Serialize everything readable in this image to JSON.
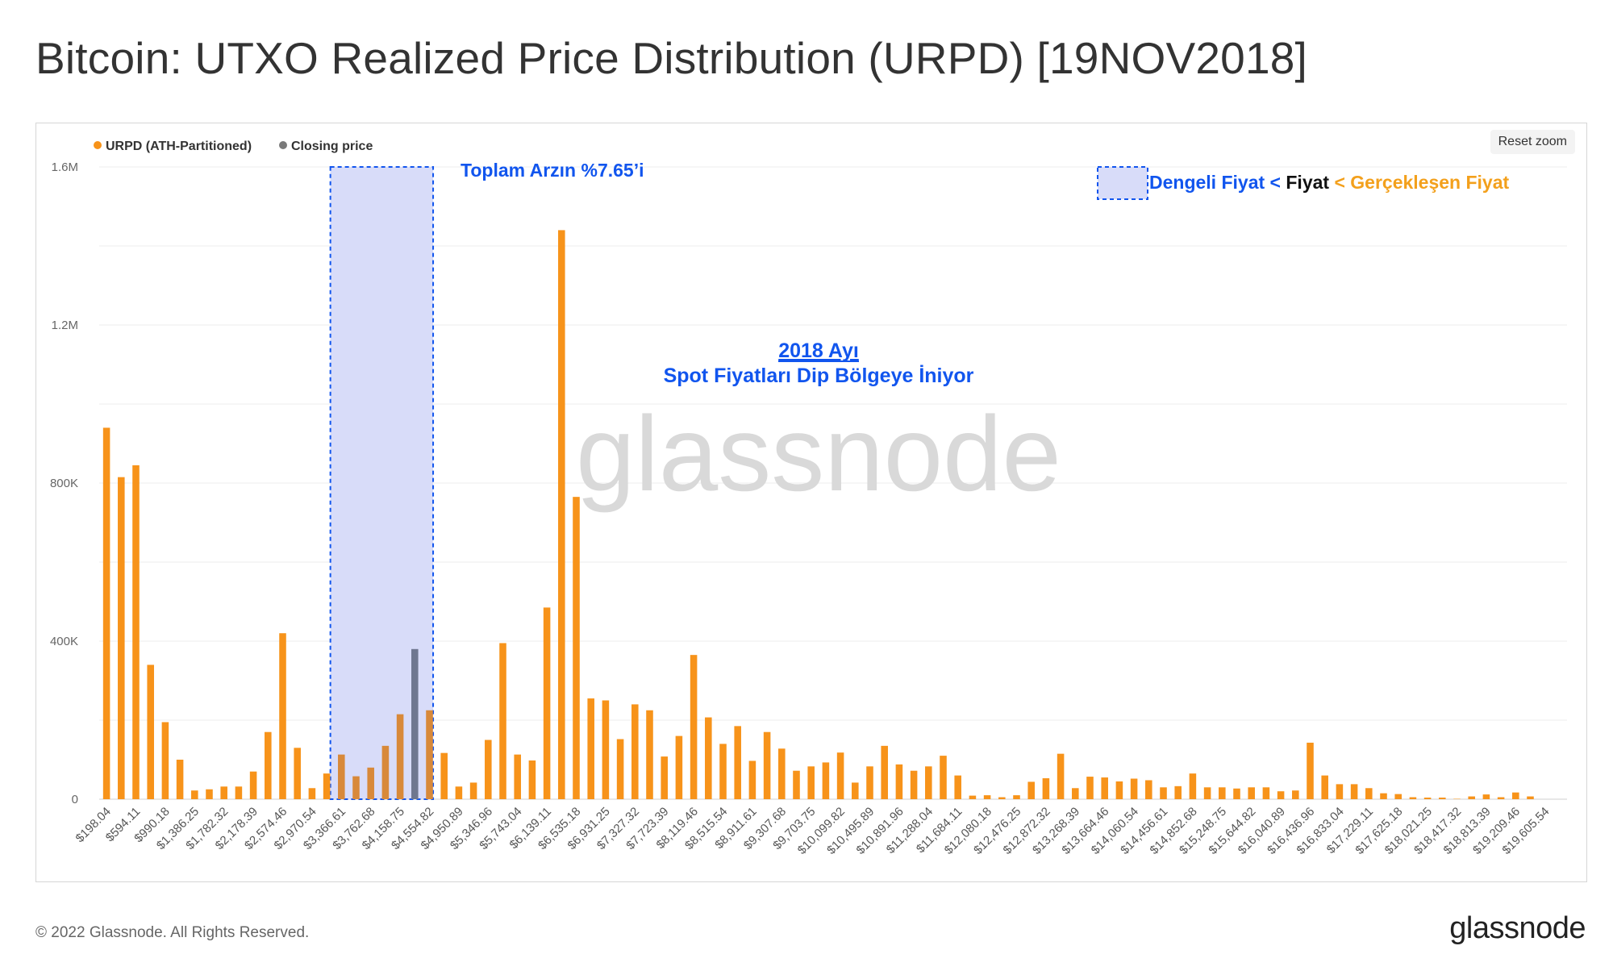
{
  "header": {
    "title": "Bitcoin: UTXO Realized Price Distribution (URPD) [19NOV2018]"
  },
  "toolbar": {
    "reset_zoom": "Reset zoom"
  },
  "legend": [
    {
      "label": "URPD (ATH-Partitioned)",
      "color": "#f7931a"
    },
    {
      "label": "Closing price",
      "color": "#7a7a7a"
    }
  ],
  "annotations": {
    "box_label": "Toplam Arzın %7.65’i",
    "key_part1": "Dengeli Fiyat",
    "key_lt1": " < ",
    "key_part2": "Fiyat",
    "key_part3": " < Gerçekleşen Fiyat",
    "center_line1": "2018 Ayı",
    "center_line2": "Spot Fiyatları Dip Bölgeye İniyor",
    "blue": "#1155ee",
    "box_fill": "#d8dcf9",
    "orange_text": "#f3a01c"
  },
  "watermark": "glassnode",
  "footer": {
    "copyright": "© 2022 Glassnode. All Rights Reserved.",
    "brand": "glassnode"
  },
  "chart_data": {
    "type": "bar",
    "ylim": [
      0,
      1600000
    ],
    "y_ticks": [
      0,
      400000,
      800000,
      1200000,
      1600000
    ],
    "y_tick_labels": [
      "0",
      "400K",
      "800K",
      "1.2M",
      "1.6M"
    ],
    "x_tick_labels": [
      "$198.04",
      "$594.11",
      "$990.18",
      "$1,386.25",
      "$1,782.32",
      "$2,178.39",
      "$2,574.46",
      "$2,970.54",
      "$3,366.61",
      "$3,762.68",
      "$4,158.75",
      "$4,554.82",
      "$4,950.89",
      "$5,346.96",
      "$5,743.04",
      "$6,139.11",
      "$6,535.18",
      "$6,931.25",
      "$7,327.32",
      "$7,723.39",
      "$8,119.46",
      "$8,515.54",
      "$8,911.61",
      "$9,307.68",
      "$9,703.75",
      "$10,099.82",
      "$10,495.89",
      "$10,891.96",
      "$11,288.04",
      "$11,684.11",
      "$12,080.18",
      "$12,476.25",
      "$12,872.32",
      "$13,268.39",
      "$13,664.46",
      "$14,060.54",
      "$14,456.61",
      "$14,852.68",
      "$15,248.75",
      "$15,644.82",
      "$16,040.89",
      "$16,436.96",
      "$16,833.04",
      "$17,229.11",
      "$17,625.18",
      "$18,021.25",
      "$18,417.32",
      "$18,813.39",
      "$19,209.46",
      "$19,605.54"
    ],
    "bins_per_label": 2,
    "highlight_bins": [
      16,
      22
    ],
    "closing_price_bin": 21,
    "series": [
      {
        "name": "URPD (ATH-Partitioned)",
        "color": "#f7931a",
        "values": [
          940000,
          815000,
          845000,
          340000,
          195000,
          100000,
          22000,
          25000,
          32000,
          32000,
          70000,
          170000,
          420000,
          130000,
          28000,
          65000,
          113000,
          58000,
          80000,
          135000,
          215000,
          380000,
          225000,
          117000,
          32000,
          42000,
          150000,
          395000,
          113000,
          98000,
          485000,
          1440000,
          765000,
          255000,
          250000,
          152000,
          240000,
          225000,
          108000,
          160000,
          365000,
          207000,
          140000,
          185000,
          97000,
          170000,
          128000,
          72000,
          83000,
          93000,
          118000,
          42000,
          83000,
          135000,
          88000,
          72000,
          83000,
          110000,
          60000,
          9000,
          10000,
          5000,
          10000,
          44000,
          53000,
          115000,
          28000,
          57000,
          55000,
          45000,
          52000,
          48000,
          30000,
          33000,
          65000,
          30000,
          30000,
          27000,
          30000,
          30000,
          20000,
          22000,
          143000,
          60000,
          38000,
          38000,
          28000,
          15000,
          13000,
          5000,
          4000,
          4000,
          1000,
          7000,
          12000,
          5000,
          17000,
          7000,
          0,
          0
        ]
      }
    ]
  }
}
